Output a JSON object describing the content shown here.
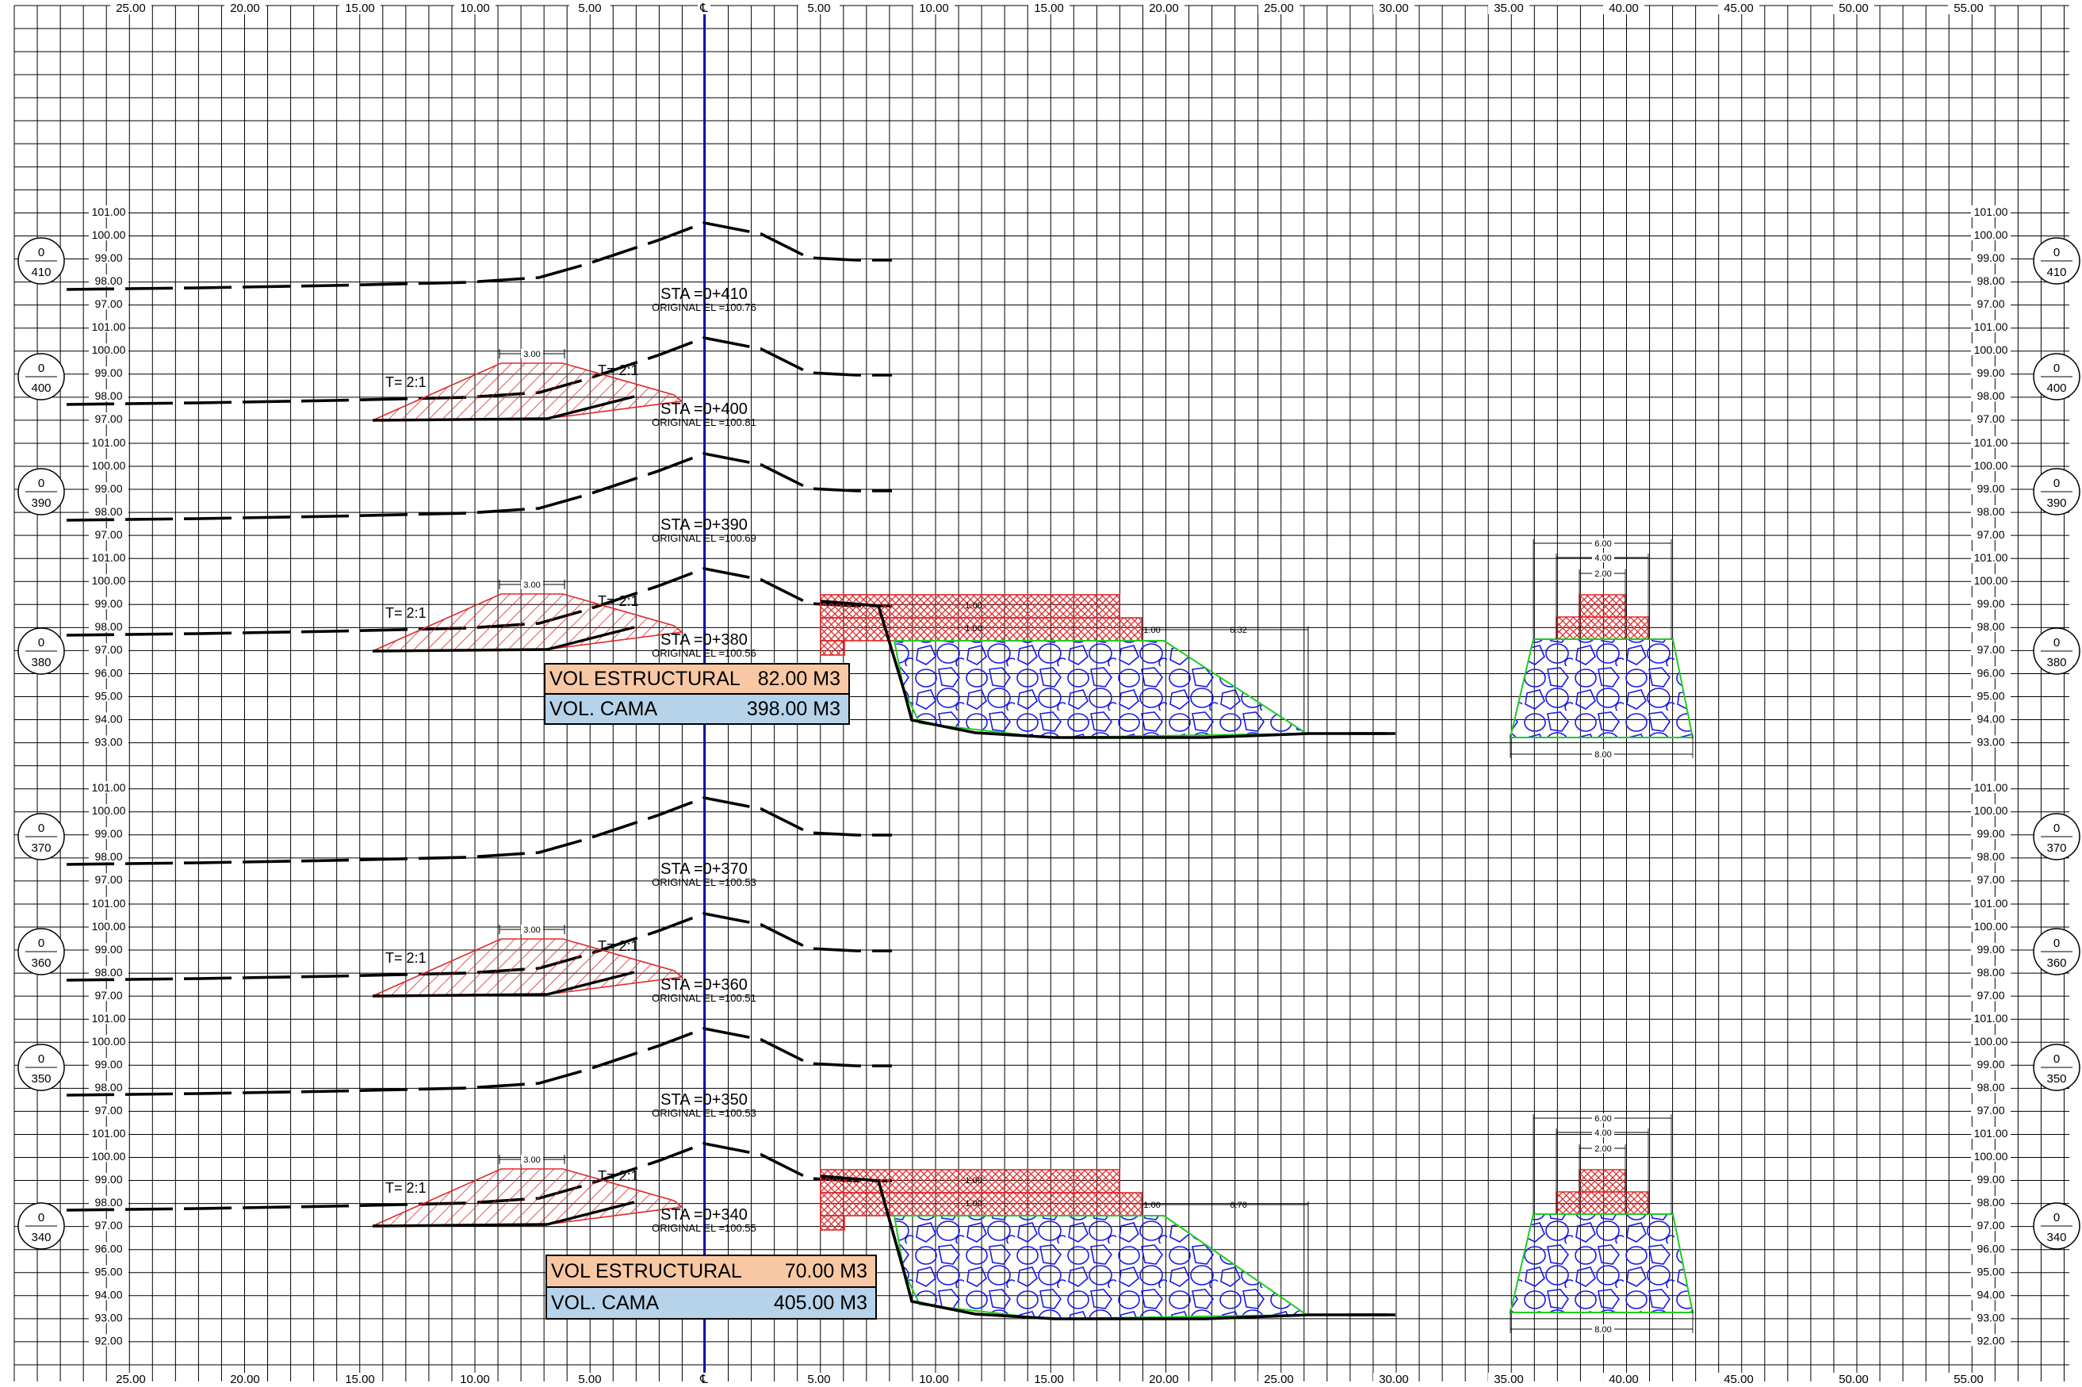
{
  "grid": {
    "x_ticks_left": [
      "25.00",
      "20.00",
      "15.00",
      "10.00",
      "5.00"
    ],
    "centerline_label": "℄",
    "x_ticks_right": [
      "5.00",
      "10.00",
      "15.00",
      "20.00",
      "25.00",
      "30.00",
      "35.00",
      "40.00",
      "45.00",
      "50.00",
      "55.00"
    ]
  },
  "sections": [
    {
      "station_bubble": "410",
      "station_label": "STA =0+410",
      "original_el": "ORIGINAL EL =100.76",
      "elevations": [
        "101.00",
        "100.00",
        "99.00",
        "98.00",
        "97.00"
      ]
    },
    {
      "station_bubble": "400",
      "station_label": "STA =0+400",
      "original_el": "ORIGINAL EL =100.81",
      "elevations": [
        "101.00",
        "100.00",
        "99.00",
        "98.00",
        "97.00"
      ],
      "slope_left": "T= 2:1",
      "slope_right": "T= 2:1",
      "crown_width": "3.00"
    },
    {
      "station_bubble": "390",
      "station_label": "STA =0+390",
      "original_el": "ORIGINAL EL =100.69",
      "elevations": [
        "101.00",
        "100.00",
        "99.00",
        "98.00",
        "97.00"
      ]
    },
    {
      "station_bubble": "380",
      "station_label": "STA =0+380",
      "original_el": "ORIGINAL EL =100.56",
      "elevations": [
        "101.00",
        "100.00",
        "99.00",
        "98.00",
        "97.00",
        "96.00",
        "95.00",
        "94.00",
        "93.00"
      ],
      "slope_left": "T= 2:1",
      "slope_right": "T= 2:1",
      "crown_width": "3.00"
    },
    {
      "station_bubble": "370",
      "station_label": "STA =0+370",
      "original_el": "ORIGINAL EL =100.53",
      "elevations": [
        "101.00",
        "100.00",
        "99.00",
        "98.00",
        "97.00"
      ]
    },
    {
      "station_bubble": "360",
      "station_label": "STA =0+360",
      "original_el": "ORIGINAL EL =100.51",
      "elevations": [
        "101.00",
        "100.00",
        "99.00",
        "98.00",
        "97.00"
      ],
      "slope_left": "T= 2:1",
      "slope_right": "T= 2:1",
      "crown_width": "3.00"
    },
    {
      "station_bubble": "350",
      "station_label": "STA =0+350",
      "original_el": "ORIGINAL EL =100.53",
      "elevations": [
        "101.00",
        "100.00",
        "99.00",
        "98.00",
        "97.00"
      ]
    },
    {
      "station_bubble": "340",
      "station_label": "STA =0+340",
      "original_el": "ORIGINAL EL =100.55",
      "elevations": [
        "101.00",
        "100.00",
        "99.00",
        "98.00",
        "97.00",
        "96.00",
        "95.00",
        "94.00",
        "93.00",
        "92.00"
      ],
      "slope_left": "T= 2:1",
      "slope_right": "T= 2:1",
      "crown_width": "3.00"
    }
  ],
  "right_elevation_column": [
    "101.00",
    "100.00",
    "99.00",
    "98.00",
    "97.00",
    "96.00",
    "95.00",
    "94.00",
    "93.00",
    "92.00"
  ],
  "volumes": [
    {
      "station": "0+380",
      "est_label": "VOL ESTRUCTURAL",
      "est_value": "82.00 M3",
      "cama_label": "VOL. CAMA",
      "cama_value": "398.00 M3"
    },
    {
      "station": "0+340",
      "est_label": "VOL ESTRUCTURAL",
      "est_value": "70.00 M3",
      "cama_label": "VOL. CAMA",
      "cama_value": "405.00 M3"
    }
  ],
  "dimensions": {
    "gabion_top_1": "1.00",
    "gabion_top_2": "1.00",
    "berm_380": "6.32",
    "berm_340": "6.76",
    "small_1": "1.00",
    "small_2": "1.00",
    "detail_w6": "6.00",
    "detail_w4": "4.00",
    "detail_w2": "2.00",
    "detail_base": "8.00"
  },
  "colors": {
    "grid": "#000000",
    "centerline": "#1a1acc",
    "fill_red": "#e0282a",
    "rock_blue": "#1a1ae6",
    "outline_green": "#22cc22",
    "vol_estructural_bg": "#f8c8a4",
    "vol_cama_bg": "#b6d3ea"
  }
}
